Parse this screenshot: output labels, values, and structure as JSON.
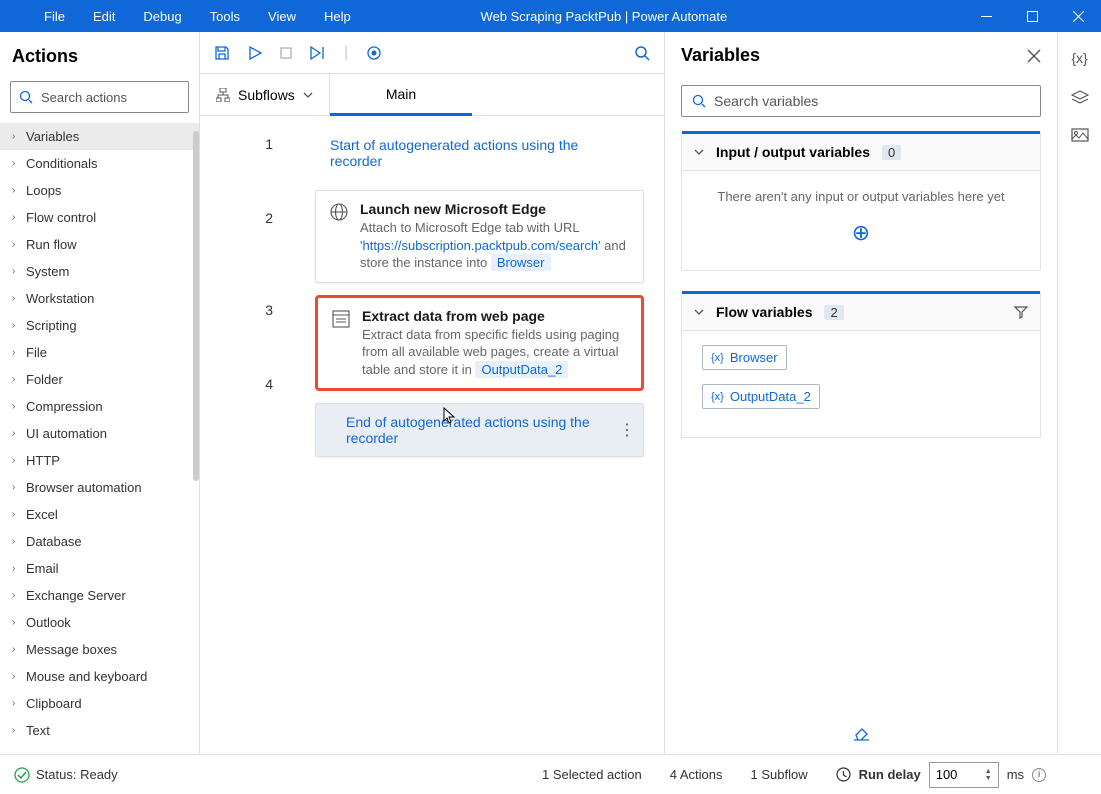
{
  "titlebar": {
    "menu": [
      "File",
      "Edit",
      "Debug",
      "Tools",
      "View",
      "Help"
    ],
    "title": "Web Scraping PacktPub | Power Automate"
  },
  "actions": {
    "heading": "Actions",
    "search_placeholder": "Search actions",
    "items": [
      "Variables",
      "Conditionals",
      "Loops",
      "Flow control",
      "Run flow",
      "System",
      "Workstation",
      "Scripting",
      "File",
      "Folder",
      "Compression",
      "UI automation",
      "HTTP",
      "Browser automation",
      "Excel",
      "Database",
      "Email",
      "Exchange Server",
      "Outlook",
      "Message boxes",
      "Mouse and keyboard",
      "Clipboard",
      "Text"
    ]
  },
  "editor": {
    "subflows_label": "Subflows",
    "main_tab": "Main",
    "steps": {
      "s1": "Start of autogenerated actions using the recorder",
      "s2_title": "Launch new Microsoft Edge",
      "s2_pre": "Attach to Microsoft Edge tab with URL ",
      "s2_url": "'https://subscription.packtpub.com/search'",
      "s2_post": " and store the instance into ",
      "s2_var": "Browser",
      "s3_title": "Extract data from web page",
      "s3_desc": "Extract data from specific fields using paging from all available web pages, create a virtual table and store it in ",
      "s3_var": "OutputData_2",
      "s4": "End of autogenerated actions using the recorder"
    }
  },
  "vars": {
    "heading": "Variables",
    "search_placeholder": "Search variables",
    "io_label": "Input / output variables",
    "io_count": "0",
    "io_empty": "There aren't any input or output variables here yet",
    "flow_label": "Flow variables",
    "flow_count": "2",
    "var1": "Browser",
    "var2": "OutputData_2"
  },
  "status": {
    "ready": "Status: Ready",
    "selected": "1 Selected action",
    "actions": "4 Actions",
    "subflows": "1 Subflow",
    "run_delay": "Run delay",
    "delay_value": "100",
    "ms": "ms"
  }
}
